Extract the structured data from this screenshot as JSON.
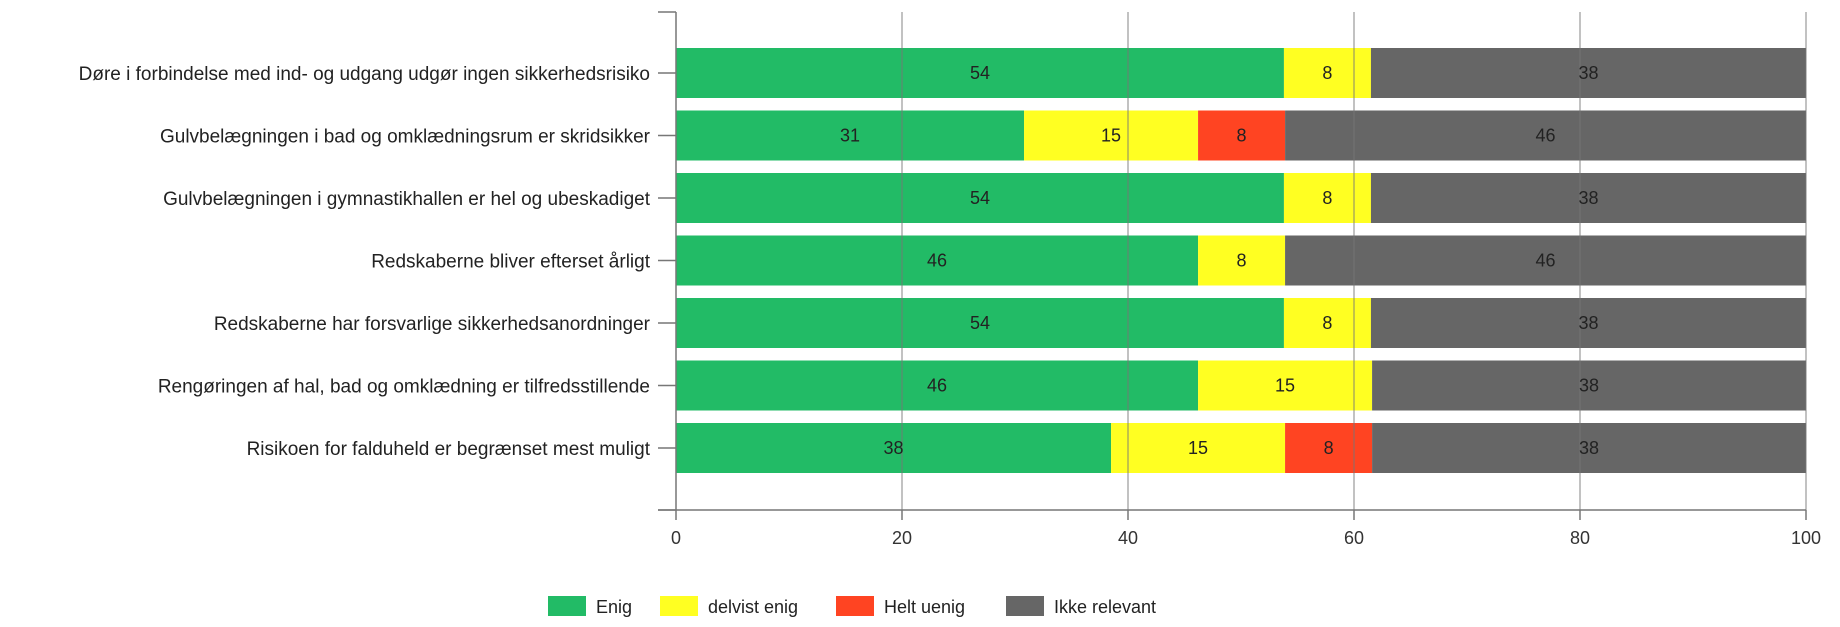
{
  "chart_data": {
    "type": "bar",
    "orientation": "horizontal",
    "stacked": true,
    "categories": [
      "Døre i forbindelse med ind- og udgang udgør ingen sikkerhedsrisiko",
      "Gulvbelægningen i bad og omklædningsrum er skridsikker",
      "Gulvbelægningen i gymnastikhallen er hel og ubeskadiget",
      "Redskaberne bliver efterset årligt",
      "Redskaberne har forsvarlige sikkerhedsanordninger",
      "Rengøringen af hal, bad og omklædning er tilfredsstillende",
      "Risikoen for falduheld er begrænset mest muligt"
    ],
    "series": [
      {
        "name": "Enig",
        "color": "#22bb66",
        "values": [
          53.8,
          30.8,
          53.8,
          46.2,
          53.8,
          46.2,
          38.5
        ],
        "labels": [
          "54",
          "31",
          "54",
          "46",
          "54",
          "46",
          "38"
        ]
      },
      {
        "name": "delvist enig",
        "color": "#ffff22",
        "values": [
          7.7,
          15.4,
          7.7,
          7.7,
          7.7,
          15.4,
          15.4
        ],
        "labels": [
          "8",
          "15",
          "8",
          "8",
          "8",
          "15",
          "15"
        ]
      },
      {
        "name": "Helt uenig",
        "color": "#ff4422",
        "values": [
          0,
          7.7,
          0,
          0,
          0,
          0,
          7.7
        ],
        "labels": [
          "",
          "8",
          "",
          "",
          "",
          "",
          "8"
        ]
      },
      {
        "name": "Ikke relevant",
        "color": "#666666",
        "values": [
          38.5,
          46.1,
          38.5,
          46.1,
          38.5,
          38.4,
          38.4
        ],
        "labels": [
          "38",
          "46",
          "38",
          "46",
          "38",
          "38",
          "38"
        ]
      }
    ],
    "xlim": [
      0,
      100
    ],
    "xticks": [
      0,
      20,
      40,
      60,
      80,
      100
    ],
    "grid": true,
    "legend": "bottom"
  }
}
